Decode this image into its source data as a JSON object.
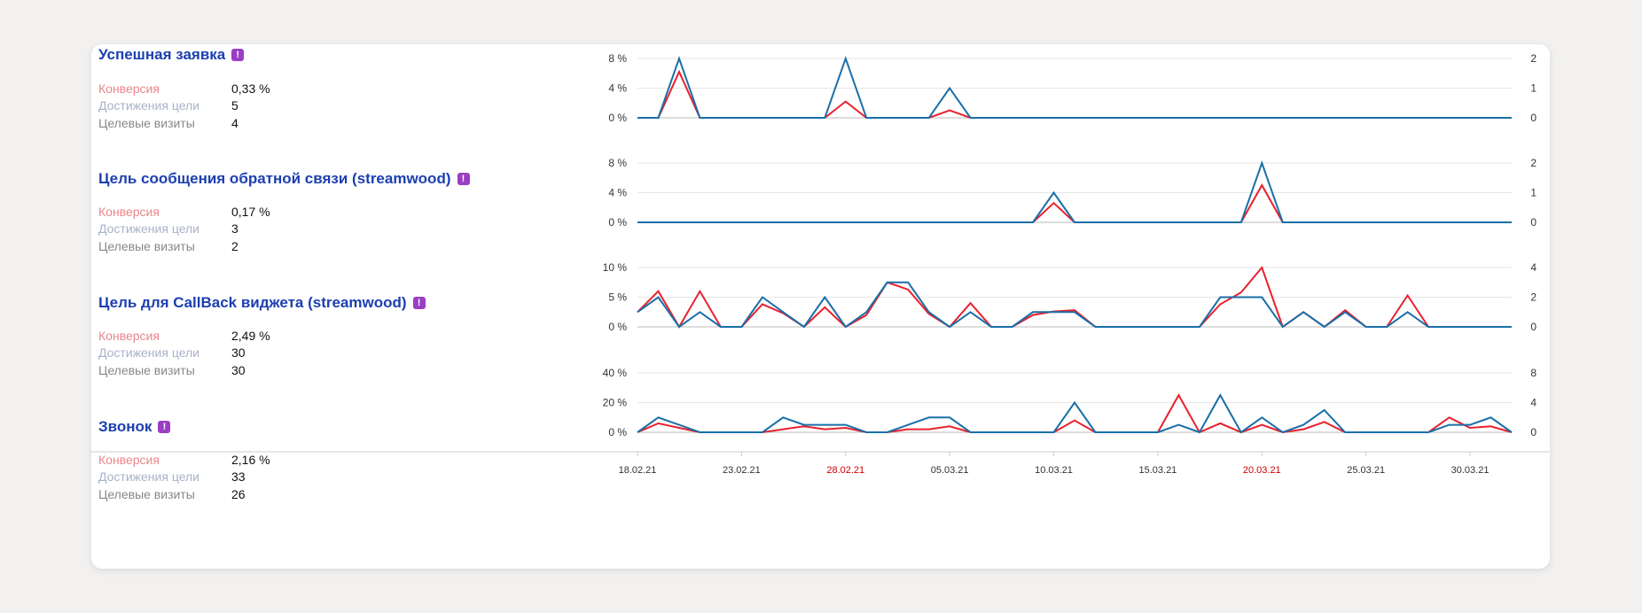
{
  "colors": {
    "conversion": "#e8212e",
    "achievements": "#1a6fa8",
    "title": "#1c3fb0",
    "label_conversion": "#e8868c",
    "label_achievements": "#a8b2c8",
    "label_visits": "#888888",
    "badge": "#9a3ec4",
    "weekend_date": "#cc0000"
  },
  "badge_glyph": "!",
  "goals": [
    {
      "title": "Успешная заявка",
      "metrics": [
        {
          "label": "Конверсия",
          "value": "0,33 %"
        },
        {
          "label": "Достижения цели",
          "value": "5"
        },
        {
          "label": "Целевые визиты",
          "value": "4"
        }
      ]
    },
    {
      "title": "Цель сообщения обратной связи (streamwood)",
      "metrics": [
        {
          "label": "Конверсия",
          "value": "0,17 %"
        },
        {
          "label": "Достижения цели",
          "value": "3"
        },
        {
          "label": "Целевые визиты",
          "value": "2"
        }
      ]
    },
    {
      "title": "Цель для CallBack виджета (streamwood)",
      "metrics": [
        {
          "label": "Конверсия",
          "value": "2,49 %"
        },
        {
          "label": "Достижения цели",
          "value": "30"
        },
        {
          "label": "Целевые визиты",
          "value": "30"
        }
      ]
    },
    {
      "title": "Звонок",
      "metrics": [
        {
          "label": "Конверсия",
          "value": "2,16 %"
        },
        {
          "label": "Достижения цели",
          "value": "33"
        },
        {
          "label": "Целевые визиты",
          "value": "26"
        }
      ]
    }
  ],
  "x_axis": {
    "tick_labels": [
      "18.02.21",
      "23.02.21",
      "28.02.21",
      "05.03.21",
      "10.03.21",
      "15.03.21",
      "20.03.21",
      "25.03.21",
      "30.03.21"
    ],
    "weekend_labels": [
      "28.02.21",
      "20.03.21"
    ]
  },
  "chart_data": [
    {
      "type": "line",
      "title": "Успешная заявка",
      "x": [
        "18.02.21",
        "19.02.21",
        "20.02.21",
        "21.02.21",
        "22.02.21",
        "23.02.21",
        "24.02.21",
        "25.02.21",
        "26.02.21",
        "27.02.21",
        "28.02.21",
        "01.03.21",
        "02.03.21",
        "03.03.21",
        "04.03.21",
        "05.03.21",
        "06.03.21",
        "07.03.21",
        "08.03.21",
        "09.03.21",
        "10.03.21",
        "11.03.21",
        "12.03.21",
        "13.03.21",
        "14.03.21",
        "15.03.21",
        "16.03.21",
        "17.03.21",
        "18.03.21",
        "19.03.21",
        "20.03.21",
        "21.03.21",
        "22.03.21",
        "23.03.21",
        "24.03.21",
        "25.03.21",
        "26.03.21",
        "27.03.21",
        "28.03.21",
        "29.03.21",
        "30.03.21",
        "31.03.21",
        "01.04.21"
      ],
      "y_left": {
        "ticks": [
          "0 %",
          "4 %",
          "8 %"
        ],
        "range": [
          0,
          8
        ]
      },
      "y_right": {
        "ticks": [
          "0",
          "1",
          "2"
        ],
        "range": [
          0,
          2
        ]
      },
      "series": [
        {
          "axis": "left",
          "values": [
            0,
            0,
            6.2,
            0,
            0,
            0,
            0,
            0,
            0,
            0,
            2.2,
            0,
            0,
            0,
            0,
            1,
            0,
            0,
            0,
            0,
            0,
            0,
            0,
            0,
            0,
            0,
            0,
            0,
            0,
            0,
            0,
            0,
            0,
            0,
            0,
            0,
            0,
            0,
            0,
            0,
            0,
            0,
            0
          ]
        },
        {
          "axis": "right",
          "values": [
            0,
            0,
            2,
            0,
            0,
            0,
            0,
            0,
            0,
            0,
            2,
            0,
            0,
            0,
            0,
            1,
            0,
            0,
            0,
            0,
            0,
            0,
            0,
            0,
            0,
            0,
            0,
            0,
            0,
            0,
            0,
            0,
            0,
            0,
            0,
            0,
            0,
            0,
            0,
            0,
            0,
            0,
            0
          ]
        }
      ]
    },
    {
      "type": "line",
      "title": "Цель сообщения обратной связи (streamwood)",
      "x": [
        "18.02.21",
        "19.02.21",
        "20.02.21",
        "21.02.21",
        "22.02.21",
        "23.02.21",
        "24.02.21",
        "25.02.21",
        "26.02.21",
        "27.02.21",
        "28.02.21",
        "01.03.21",
        "02.03.21",
        "03.03.21",
        "04.03.21",
        "05.03.21",
        "06.03.21",
        "07.03.21",
        "08.03.21",
        "09.03.21",
        "10.03.21",
        "11.03.21",
        "12.03.21",
        "13.03.21",
        "14.03.21",
        "15.03.21",
        "16.03.21",
        "17.03.21",
        "18.03.21",
        "19.03.21",
        "20.03.21",
        "21.03.21",
        "22.03.21",
        "23.03.21",
        "24.03.21",
        "25.03.21",
        "26.03.21",
        "27.03.21",
        "28.03.21",
        "29.03.21",
        "30.03.21",
        "31.03.21",
        "01.04.21"
      ],
      "y_left": {
        "ticks": [
          "0 %",
          "4 %",
          "8 %"
        ],
        "range": [
          0,
          8
        ]
      },
      "y_right": {
        "ticks": [
          "0",
          "1",
          "2"
        ],
        "range": [
          0,
          2
        ]
      },
      "series": [
        {
          "axis": "left",
          "values": [
            0,
            0,
            0,
            0,
            0,
            0,
            0,
            0,
            0,
            0,
            0,
            0,
            0,
            0,
            0,
            0,
            0,
            0,
            0,
            0,
            2.6,
            0,
            0,
            0,
            0,
            0,
            0,
            0,
            0,
            0,
            5,
            0,
            0,
            0,
            0,
            0,
            0,
            0,
            0,
            0,
            0,
            0,
            0
          ]
        },
        {
          "axis": "right",
          "values": [
            0,
            0,
            0,
            0,
            0,
            0,
            0,
            0,
            0,
            0,
            0,
            0,
            0,
            0,
            0,
            0,
            0,
            0,
            0,
            0,
            1,
            0,
            0,
            0,
            0,
            0,
            0,
            0,
            0,
            0,
            2,
            0,
            0,
            0,
            0,
            0,
            0,
            0,
            0,
            0,
            0,
            0,
            0
          ]
        }
      ]
    },
    {
      "type": "line",
      "title": "Цель для CallBack виджета (streamwood)",
      "x": [
        "18.02.21",
        "19.02.21",
        "20.02.21",
        "21.02.21",
        "22.02.21",
        "23.02.21",
        "24.02.21",
        "25.02.21",
        "26.02.21",
        "27.02.21",
        "28.02.21",
        "01.03.21",
        "02.03.21",
        "03.03.21",
        "04.03.21",
        "05.03.21",
        "06.03.21",
        "07.03.21",
        "08.03.21",
        "09.03.21",
        "10.03.21",
        "11.03.21",
        "12.03.21",
        "13.03.21",
        "14.03.21",
        "15.03.21",
        "16.03.21",
        "17.03.21",
        "18.03.21",
        "19.03.21",
        "20.03.21",
        "21.03.21",
        "22.03.21",
        "23.03.21",
        "24.03.21",
        "25.03.21",
        "26.03.21",
        "27.03.21",
        "28.03.21",
        "29.03.21",
        "30.03.21",
        "31.03.21",
        "01.04.21"
      ],
      "y_left": {
        "ticks": [
          "0 %",
          "5 %",
          "10 %"
        ],
        "range": [
          0,
          10
        ]
      },
      "y_right": {
        "ticks": [
          "0",
          "2",
          "4"
        ],
        "range": [
          0,
          4
        ]
      },
      "series": [
        {
          "axis": "left",
          "values": [
            2.5,
            6,
            0,
            6,
            0,
            0,
            3.8,
            2.3,
            0,
            3.3,
            0,
            2,
            7.5,
            6.3,
            2.2,
            0,
            4,
            0,
            0,
            2,
            2.6,
            2.8,
            0,
            0,
            0,
            0,
            0,
            0,
            3.8,
            5.8,
            10,
            0,
            2.5,
            0,
            2.8,
            0,
            0,
            5.3,
            0,
            0,
            0,
            0,
            0
          ]
        },
        {
          "axis": "right",
          "values": [
            1,
            2,
            0,
            1,
            0,
            0,
            2,
            1,
            0,
            2,
            0,
            1,
            3,
            3,
            1,
            0,
            1,
            0,
            0,
            1,
            1,
            1,
            0,
            0,
            0,
            0,
            0,
            0,
            2,
            2,
            2,
            0,
            1,
            0,
            1,
            0,
            0,
            1,
            0,
            0,
            0,
            0,
            0
          ]
        }
      ]
    },
    {
      "type": "line",
      "title": "Звонок",
      "x": [
        "18.02.21",
        "19.02.21",
        "20.02.21",
        "21.02.21",
        "22.02.21",
        "23.02.21",
        "24.02.21",
        "25.02.21",
        "26.02.21",
        "27.02.21",
        "28.02.21",
        "01.03.21",
        "02.03.21",
        "03.03.21",
        "04.03.21",
        "05.03.21",
        "06.03.21",
        "07.03.21",
        "08.03.21",
        "09.03.21",
        "10.03.21",
        "11.03.21",
        "12.03.21",
        "13.03.21",
        "14.03.21",
        "15.03.21",
        "16.03.21",
        "17.03.21",
        "18.03.21",
        "19.03.21",
        "20.03.21",
        "21.03.21",
        "22.03.21",
        "23.03.21",
        "24.03.21",
        "25.03.21",
        "26.03.21",
        "27.03.21",
        "28.03.21",
        "29.03.21",
        "30.03.21",
        "31.03.21",
        "01.04.21"
      ],
      "y_left": {
        "ticks": [
          "0 %",
          "20 %",
          "40 %"
        ],
        "range": [
          0,
          40
        ]
      },
      "y_right": {
        "ticks": [
          "0",
          "4",
          "8"
        ],
        "range": [
          0,
          8
        ]
      },
      "series": [
        {
          "axis": "left",
          "values": [
            0,
            6,
            3,
            0,
            0,
            0,
            0,
            2,
            4,
            2,
            3,
            0,
            0,
            2,
            2,
            4,
            0,
            0,
            0,
            0,
            0,
            8,
            0,
            0,
            0,
            0,
            25,
            0,
            6,
            0,
            5,
            0,
            2,
            7,
            0,
            0,
            0,
            0,
            0,
            10,
            3,
            4,
            0
          ]
        },
        {
          "axis": "right",
          "values": [
            0,
            2,
            1,
            0,
            0,
            0,
            0,
            2,
            1,
            1,
            1,
            0,
            0,
            1,
            2,
            2,
            0,
            0,
            0,
            0,
            0,
            4,
            0,
            0,
            0,
            0,
            1,
            0,
            5,
            0,
            2,
            0,
            1,
            3,
            0,
            0,
            0,
            0,
            0,
            1,
            1,
            2,
            0
          ]
        }
      ]
    }
  ]
}
